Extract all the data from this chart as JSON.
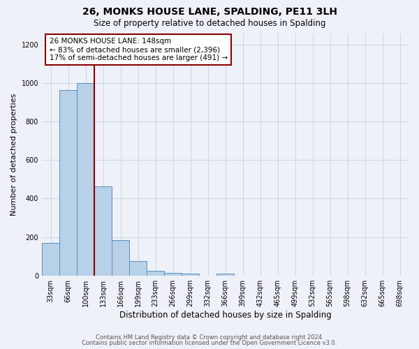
{
  "title": "26, MONKS HOUSE LANE, SPALDING, PE11 3LH",
  "subtitle": "Size of property relative to detached houses in Spalding",
  "xlabel": "Distribution of detached houses by size in Spalding",
  "ylabel": "Number of detached properties",
  "bin_labels": [
    "33sqm",
    "66sqm",
    "100sqm",
    "133sqm",
    "166sqm",
    "199sqm",
    "233sqm",
    "266sqm",
    "299sqm",
    "332sqm",
    "366sqm",
    "399sqm",
    "432sqm",
    "465sqm",
    "499sqm",
    "532sqm",
    "565sqm",
    "598sqm",
    "632sqm",
    "665sqm",
    "698sqm"
  ],
  "bar_heights": [
    170,
    965,
    1000,
    465,
    185,
    75,
    25,
    15,
    10,
    0,
    10,
    0,
    0,
    0,
    0,
    0,
    0,
    0,
    0,
    0,
    0
  ],
  "bar_color": "#b8d0e8",
  "bar_edge_color": "#5a8fc0",
  "vline_color": "#8b0000",
  "annotation_line1": "26 MONKS HOUSE LANE: 148sqm",
  "annotation_line2": "← 83% of detached houses are smaller (2,396)",
  "annotation_line3": "17% of semi-detached houses are larger (491) →",
  "annotation_box_color": "#ffffff",
  "annotation_box_edge_color": "#8b0000",
  "ylim": [
    0,
    1260
  ],
  "yticks": [
    0,
    200,
    400,
    600,
    800,
    1000,
    1200
  ],
  "grid_color": "#cdd6e8",
  "background_color": "#eef2f8",
  "footer_line1": "Contains HM Land Registry data © Crown copyright and database right 2024.",
  "footer_line2": "Contains public sector information licensed under the Open Government Licence v3.0.",
  "title_fontsize": 10,
  "subtitle_fontsize": 8.5,
  "ylabel_fontsize": 8,
  "xlabel_fontsize": 8.5,
  "tick_fontsize": 7,
  "annotation_fontsize": 7.5,
  "footer_fontsize": 6
}
